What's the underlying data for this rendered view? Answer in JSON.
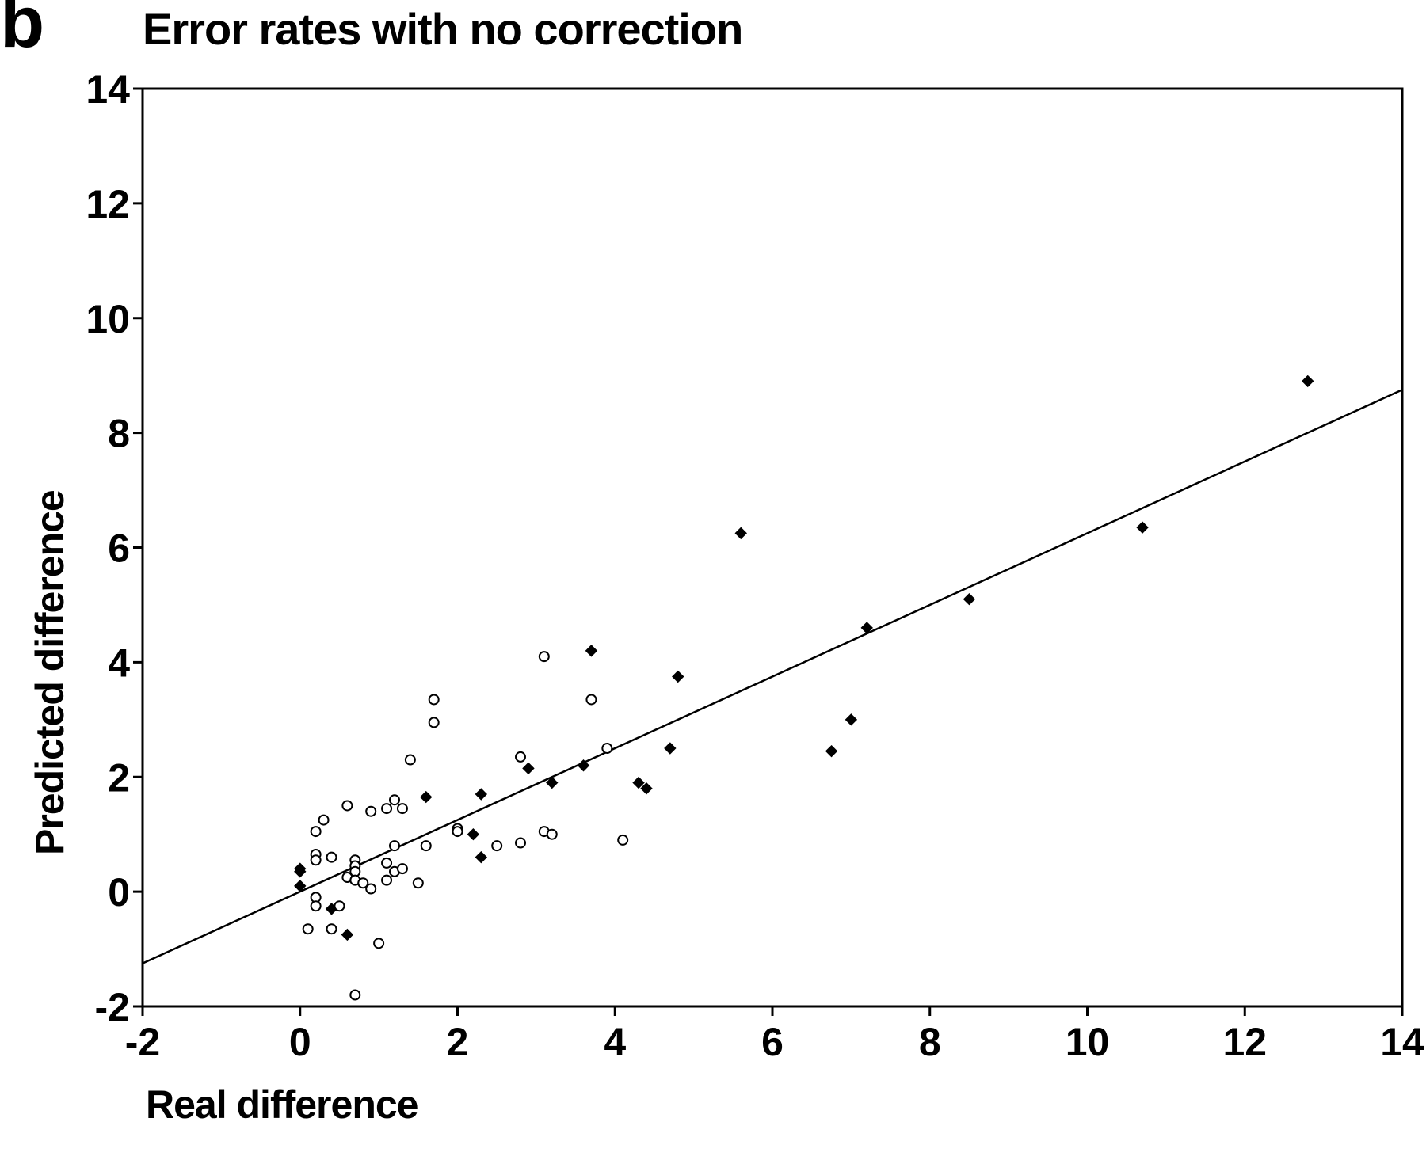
{
  "panel_label": "b",
  "chart_data": {
    "type": "scatter",
    "title": "Error rates with no correction",
    "xlabel": "Real difference",
    "ylabel": "Predicted difference",
    "xlim": [
      -2,
      14
    ],
    "ylim": [
      -2,
      14
    ],
    "xticks": [
      -2,
      0,
      2,
      4,
      6,
      8,
      10,
      12,
      14
    ],
    "yticks": [
      -2,
      0,
      2,
      4,
      6,
      8,
      10,
      12,
      14
    ],
    "grid": false,
    "series": [
      {
        "marker": "filled-diamond",
        "points": [
          [
            0.0,
            0.4
          ],
          [
            0.0,
            0.35
          ],
          [
            0.0,
            0.1
          ],
          [
            0.4,
            -0.3
          ],
          [
            0.6,
            -0.75
          ],
          [
            1.6,
            1.65
          ],
          [
            2.2,
            1.0
          ],
          [
            2.3,
            1.7
          ],
          [
            2.3,
            0.6
          ],
          [
            2.9,
            2.15
          ],
          [
            3.2,
            1.9
          ],
          [
            3.6,
            2.2
          ],
          [
            3.7,
            4.2
          ],
          [
            4.3,
            1.9
          ],
          [
            4.4,
            1.8
          ],
          [
            4.7,
            2.5
          ],
          [
            4.8,
            3.75
          ],
          [
            5.6,
            6.25
          ],
          [
            6.75,
            2.45
          ],
          [
            7.0,
            3.0
          ],
          [
            7.2,
            4.6
          ],
          [
            8.5,
            5.1
          ],
          [
            10.7,
            6.35
          ],
          [
            12.8,
            8.9
          ]
        ]
      },
      {
        "marker": "open-circle",
        "points": [
          [
            0.1,
            -0.65
          ],
          [
            0.2,
            1.05
          ],
          [
            0.2,
            0.65
          ],
          [
            0.2,
            0.55
          ],
          [
            0.2,
            -0.1
          ],
          [
            0.2,
            -0.25
          ],
          [
            0.3,
            1.25
          ],
          [
            0.4,
            0.6
          ],
          [
            0.4,
            -0.65
          ],
          [
            0.5,
            -0.25
          ],
          [
            0.6,
            1.5
          ],
          [
            0.6,
            0.25
          ],
          [
            0.7,
            0.55
          ],
          [
            0.7,
            0.45
          ],
          [
            0.7,
            0.35
          ],
          [
            0.7,
            0.2
          ],
          [
            0.7,
            -1.8
          ],
          [
            0.8,
            0.15
          ],
          [
            0.9,
            1.4
          ],
          [
            0.9,
            0.05
          ],
          [
            1.0,
            -0.9
          ],
          [
            1.1,
            1.45
          ],
          [
            1.1,
            0.5
          ],
          [
            1.1,
            0.2
          ],
          [
            1.2,
            1.6
          ],
          [
            1.2,
            0.8
          ],
          [
            1.2,
            0.35
          ],
          [
            1.3,
            1.45
          ],
          [
            1.3,
            0.4
          ],
          [
            1.4,
            2.3
          ],
          [
            1.5,
            0.15
          ],
          [
            1.6,
            0.8
          ],
          [
            1.7,
            3.35
          ],
          [
            1.7,
            2.95
          ],
          [
            2.0,
            1.1
          ],
          [
            2.0,
            1.05
          ],
          [
            2.5,
            0.8
          ],
          [
            2.8,
            2.35
          ],
          [
            2.8,
            0.85
          ],
          [
            3.1,
            4.1
          ],
          [
            3.1,
            1.05
          ],
          [
            3.2,
            1.0
          ],
          [
            3.7,
            3.35
          ],
          [
            3.9,
            2.5
          ],
          [
            4.1,
            0.9
          ]
        ]
      }
    ],
    "fit_line": {
      "x": [
        -2,
        14
      ],
      "y": [
        -1.25,
        8.75
      ]
    }
  }
}
